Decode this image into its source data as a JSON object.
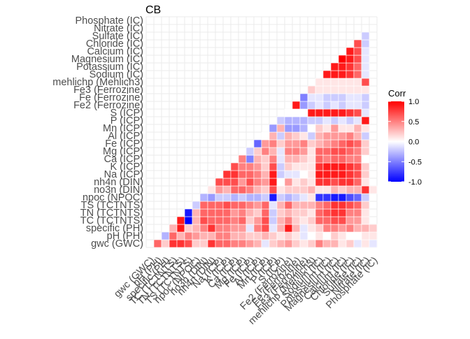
{
  "chart_data": {
    "type": "heatmap",
    "title": "CB",
    "variables": [
      "gwc (GWC)",
      "pH (PH)",
      "specific (PH)",
      "TC (TCTNTS)",
      "TN (TCTNTS)",
      "TS (TCTNTS)",
      "npoc (NPOC)",
      "no3n (DIN)",
      "nh4n (DIN)",
      "Na (ICP)",
      "K (ICP)",
      "Ca (ICP)",
      "Mg (ICP)",
      "Fe (ICP)",
      "Al (ICP)",
      "Mn (ICP)",
      "P (ICP)",
      "S (ICP)",
      "Fe2 (Ferrozine)",
      "Fe (Ferrozine)",
      "Fe3 (Ferrozine)",
      "mehlichp (Mehlich3)",
      "Sodium (IC)",
      "Potassium (IC)",
      "Magnesium (IC)",
      "Calcium (IC)",
      "Chloride (IC)",
      "Sulfate (IC)",
      "Nitrate (IC)",
      "Phosphate (IC)"
    ],
    "legend": {
      "title": "Corr",
      "position": "right",
      "ticks": [
        "1.0",
        "0.5",
        "0.0",
        "-0.5",
        "-1.0"
      ],
      "limits": [
        -1,
        1
      ],
      "colors": {
        "low": "#0000ff",
        "mid": "#ffffff",
        "high": "#ff0000"
      }
    },
    "grid": true,
    "matrix": [
      [
        0.6,
        0.2,
        0.8,
        0.8,
        0.7,
        0.2,
        0.2,
        0.8,
        0.6,
        0.6,
        0.5,
        0.5,
        0.4,
        0.3,
        -0.1,
        0.2,
        0.3,
        0.4,
        0.2,
        0.1,
        0.2,
        0.5,
        0.3,
        0.3,
        0.1,
        0.2,
        -0.1,
        0.1,
        -0.1
      ],
      [
        -0.3,
        0.6,
        0.3,
        0.5,
        0.4,
        0.3,
        0.3,
        0.5,
        0.5,
        0.3,
        0.3,
        0.2,
        0.2,
        0.3,
        0.2,
        0.1,
        0.2,
        0.1,
        -0.1,
        0.0,
        0.1,
        0.0,
        0.2,
        0.1,
        0.0,
        0.0,
        0.1,
        0.1
      ],
      [
        0.3,
        0.9,
        0.2,
        0.3,
        0.5,
        0.8,
        0.5,
        0.5,
        0.4,
        0.4,
        -0.1,
        0.5,
        0.7,
        -0.1,
        0.3,
        0.9,
        0.3,
        -0.1,
        0.1,
        0.2,
        0.5,
        0.5,
        0.4,
        0.5,
        0.3,
        0.3,
        0.2
      ],
      [
        0.9,
        -1.0,
        0.3,
        0.7,
        0.6,
        0.6,
        0.6,
        0.5,
        0.6,
        0.2,
        0.4,
        0.7,
        -0.2,
        0.3,
        0.5,
        0.2,
        0.1,
        0.2,
        0.6,
        0.6,
        0.7,
        0.7,
        0.4,
        0.4,
        0.1
      ],
      [
        -0.9,
        0.3,
        0.6,
        0.6,
        0.6,
        0.6,
        0.4,
        0.5,
        0.3,
        0.2,
        0.6,
        -0.2,
        0.2,
        0.3,
        0.2,
        0.2,
        0.1,
        0.6,
        0.7,
        0.8,
        0.8,
        0.5,
        0.5,
        0.1
      ],
      [
        -0.2,
        0.6,
        0.6,
        0.6,
        0.7,
        0.6,
        0.6,
        0.5,
        0.4,
        0.6,
        -0.1,
        0.3,
        0.6,
        0.3,
        0.3,
        0.3,
        0.5,
        0.6,
        0.8,
        0.8,
        0.7,
        0.6,
        0.2
      ],
      [
        -0.3,
        -0.4,
        -0.2,
        -0.2,
        -0.3,
        -0.2,
        -0.3,
        -0.3,
        -0.2,
        -0.9,
        -0.2,
        -0.3,
        -0.2,
        -0.1,
        0.1,
        -0.8,
        -0.8,
        -0.9,
        -0.9,
        -0.7,
        -0.6,
        -0.2
      ],
      [
        0.1,
        0.4,
        0.3,
        0.6,
        0.6,
        0.5,
        0.3,
        0.2,
        0.7,
        0.1,
        0.2,
        0.2,
        0.2,
        0.3,
        0.1,
        0.1,
        0.3,
        0.2,
        0.3,
        0.3,
        0.8,
        0.1
      ],
      [
        0.7,
        0.7,
        0.7,
        0.4,
        0.7,
        0.5,
        0.4,
        0.9,
        0.0,
        0.4,
        0.1,
        0.2,
        0.1,
        0.8,
        0.8,
        0.7,
        0.8,
        0.8,
        0.6,
        0.1
      ],
      [
        0.8,
        0.8,
        0.6,
        0.6,
        0.5,
        0.3,
        0.9,
        -0.2,
        -0.1,
        -0.1,
        0.0,
        0.1,
        0.9,
        0.9,
        0.9,
        0.9,
        0.8,
        0.7,
        0.2
      ],
      [
        0.7,
        0.5,
        0.5,
        0.4,
        0.2,
        0.7,
        -0.2,
        0.2,
        0.1,
        0.1,
        0.1,
        0.8,
        0.9,
        0.9,
        0.9,
        0.8,
        0.7,
        0.2
      ],
      [
        0.5,
        -0.5,
        0.3,
        0.2,
        0.5,
        -0.1,
        0.3,
        0.3,
        0.2,
        0.1,
        0.6,
        0.5,
        0.6,
        0.6,
        0.5,
        0.5,
        0.0
      ],
      [
        -0.2,
        0.2,
        0.5,
        0.3,
        -0.1,
        0.5,
        0.5,
        0.4,
        0.1,
        0.6,
        0.6,
        0.7,
        0.7,
        0.6,
        0.5,
        0.2
      ],
      [
        -0.6,
        0.4,
        0.5,
        0.2,
        0.4,
        0.4,
        0.5,
        0.2,
        0.3,
        0.4,
        0.5,
        0.6,
        0.7,
        0.6,
        0.2
      ],
      [
        0.0,
        0.3,
        -0.2,
        0.3,
        0.2,
        0.1,
        -0.2,
        0.3,
        0.4,
        0.4,
        0.4,
        0.5,
        0.3,
        -0.2
      ],
      [
        -0.4,
        0.3,
        -0.4,
        -0.4,
        -0.3,
        0.0,
        0.2,
        0.1,
        0.4,
        0.1,
        0.1,
        0.3,
        0.1
      ],
      [
        -0.2,
        -0.3,
        -0.3,
        -0.3,
        -0.2,
        -0.2,
        -0.1,
        -0.2,
        -0.1,
        -0.2,
        -0.1,
        0.9
      ],
      [
        0.0,
        0.0,
        0.0,
        0.9,
        0.9,
        0.9,
        0.9,
        0.9,
        0.8,
        0.7,
        -0.1
      ],
      [
        0.9,
        -0.4,
        -0.2,
        -0.1,
        -0.2,
        -0.1,
        -0.2,
        -0.1,
        -0.1,
        -0.2
      ],
      [
        -0.5,
        -0.1,
        -0.1,
        -0.2,
        -0.2,
        -0.2,
        -0.1,
        -0.1,
        -0.2
      ],
      [
        0.2,
        0.1,
        0.1,
        0.1,
        0.1,
        0.1,
        0.1,
        0.1
      ],
      [
        0.1,
        0.1,
        0.1,
        0.1,
        0.1,
        0.1,
        0.7
      ],
      [
        0.9,
        0.9,
        0.9,
        0.8,
        0.6,
        -0.1
      ],
      [
        0.9,
        0.9,
        0.8,
        0.6,
        -0.1
      ],
      [
        1.0,
        0.9,
        0.7,
        -0.1
      ],
      [
        0.9,
        0.7,
        -0.1
      ],
      [
        0.7,
        -0.2
      ],
      [
        -0.2
      ]
    ]
  }
}
